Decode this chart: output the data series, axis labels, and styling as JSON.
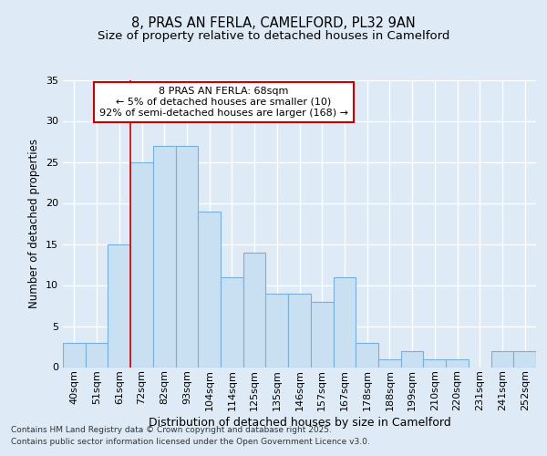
{
  "title": "8, PRAS AN FERLA, CAMELFORD, PL32 9AN",
  "subtitle": "Size of property relative to detached houses in Camelford",
  "xlabel": "Distribution of detached houses by size in Camelford",
  "ylabel": "Number of detached properties",
  "categories": [
    "40sqm",
    "51sqm",
    "61sqm",
    "72sqm",
    "82sqm",
    "93sqm",
    "104sqm",
    "114sqm",
    "125sqm",
    "135sqm",
    "146sqm",
    "157sqm",
    "167sqm",
    "178sqm",
    "188sqm",
    "199sqm",
    "210sqm",
    "220sqm",
    "231sqm",
    "241sqm",
    "252sqm"
  ],
  "values": [
    3,
    3,
    15,
    25,
    27,
    27,
    19,
    11,
    14,
    9,
    9,
    8,
    11,
    3,
    1,
    2,
    1,
    1,
    0,
    2,
    2
  ],
  "bar_color": "#c9dff2",
  "bar_edge_color": "#7ab0d8",
  "bg_color": "#deeaf6",
  "fig_bg_color": "#deeaf6",
  "grid_color": "#b8cfe8",
  "red_line_x": 2.5,
  "annotation_text": "8 PRAS AN FERLA: 68sqm\n← 5% of detached houses are smaller (10)\n92% of semi-detached houses are larger (168) →",
  "annotation_box_color": "#ffffff",
  "annotation_box_edge": "#cc0000",
  "footer_line1": "Contains HM Land Registry data © Crown copyright and database right 2025.",
  "footer_line2": "Contains public sector information licensed under the Open Government Licence v3.0.",
  "ylim": [
    0,
    35
  ],
  "yticks": [
    0,
    5,
    10,
    15,
    20,
    25,
    30,
    35
  ],
  "title_fontsize": 10.5,
  "subtitle_fontsize": 9.5,
  "xlabel_fontsize": 9,
  "ylabel_fontsize": 8.5,
  "tick_fontsize": 8,
  "annotation_fontsize": 8,
  "footer_fontsize": 6.5
}
